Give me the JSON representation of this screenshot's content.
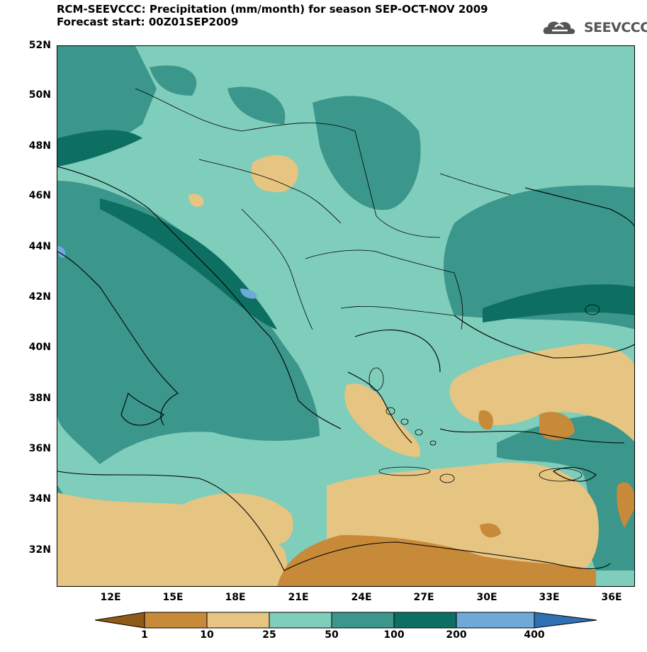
{
  "title": {
    "line1": "RCM-SEEVCCC: Precipitation (mm/month) for season SEP-OCT-NOV 2009",
    "line2": "Forecast start: 00Z01SEP2009"
  },
  "logo": {
    "text": "SEEVCCC",
    "icon": "cloud-icon"
  },
  "map": {
    "lat_labels": [
      "52N",
      "50N",
      "48N",
      "46N",
      "44N",
      "42N",
      "40N",
      "38N",
      "36N",
      "34N",
      "32N"
    ],
    "lon_labels": [
      "12E",
      "15E",
      "18E",
      "21E",
      "24E",
      "27E",
      "30E",
      "33E",
      "36E"
    ]
  },
  "legend": {
    "levels": [
      "1",
      "10",
      "25",
      "50",
      "100",
      "200",
      "400"
    ],
    "colors": [
      "#8f5a17",
      "#c78a38",
      "#e6c481",
      "#7fcdbb",
      "#3b968b",
      "#0c6f62",
      "#6ea9d8",
      "#2f6fb3"
    ]
  }
}
